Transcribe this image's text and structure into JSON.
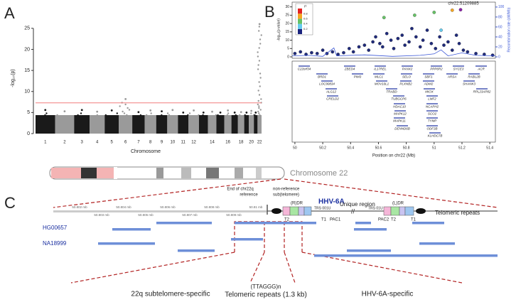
{
  "panel_labels": [
    "A",
    "B",
    "C"
  ],
  "chart_data": [
    {
      "type": "manhattan",
      "ylabel": "-log₁₀(p)",
      "xlabel": "Chromosome",
      "categories": [
        "1",
        "2",
        "3",
        "4",
        "5",
        "6",
        "7",
        "8",
        "9",
        "10",
        "11",
        "12",
        null,
        "14",
        null,
        "16",
        null,
        "18",
        null,
        "20",
        null,
        "22"
      ],
      "values": [
        5.6,
        5.3,
        5.6,
        5.2,
        5.5,
        8.2,
        5.1,
        5.5,
        5.3,
        5.6,
        5.0,
        5.5,
        5.0,
        5.2,
        5.0,
        5.5,
        5.0,
        5.1,
        5.0,
        5.4,
        5.0,
        26
      ],
      "colors": [
        "#1a1a1a",
        "#9a9a9a"
      ],
      "threshold": 7.3,
      "threshold_color": "#f27f7f",
      "ylim": [
        0,
        27
      ],
      "yticks": [
        0,
        5,
        10,
        15,
        20,
        25
      ]
    },
    {
      "type": "scatter",
      "ylabel": "-log₁₀(p-value)",
      "y2label": "Recombination rate (cM/Mb)",
      "xlabel": "Position on chr22 (Mb)",
      "annotation": "chr22:51209885",
      "xlim": [
        49.98,
        51.44
      ],
      "xticks": [
        50,
        50.2,
        50.4,
        50.6,
        50.8,
        51,
        51.2,
        51.4
      ],
      "ylim": [
        0,
        32
      ],
      "yticks": [
        0,
        5,
        10,
        15,
        20,
        25,
        30
      ],
      "y2lim": [
        0,
        107
      ],
      "y2ticks": [
        0,
        20,
        40,
        60,
        80,
        100
      ],
      "legend_title": "r²",
      "legend_ticks": [
        0.2,
        0.4,
        0.6,
        0.8
      ],
      "legend_colors": [
        "#1a237e",
        "#66ccee",
        "#66c266",
        "#f5a623",
        "#e32222"
      ],
      "series": [
        {
          "color": "#1f2a7a",
          "x": [
            50.0,
            50.04,
            50.08,
            50.12,
            50.16,
            50.2,
            50.23,
            50.27,
            50.31,
            50.35,
            50.39,
            50.42,
            50.46,
            50.5,
            50.53,
            50.56,
            50.58,
            50.61,
            50.63,
            50.66,
            50.69,
            50.71,
            50.74,
            50.77,
            50.79,
            50.82,
            50.84,
            50.87,
            50.9,
            50.92,
            50.95,
            50.98,
            51.01,
            51.04,
            51.07,
            51.1,
            51.13,
            51.16,
            51.18,
            51.21,
            51.24,
            51.3,
            51.36,
            51.42
          ],
          "values": [
            2,
            3,
            1.5,
            2.5,
            2,
            4,
            2,
            3,
            1.5,
            2.5,
            5,
            3,
            6,
            7,
            4,
            9,
            12,
            8,
            6,
            14,
            10,
            5,
            11,
            13,
            7,
            9,
            17,
            12,
            6,
            10,
            16,
            8,
            5,
            12,
            7,
            9,
            4,
            13,
            8,
            4,
            3,
            2,
            1.5,
            1
          ]
        },
        {
          "colors": [
            "#66c266",
            "#66c266",
            "#66c266",
            "#66ccee",
            "#f5a623",
            "#8b1fa9"
          ],
          "x": [
            50.64,
            50.86,
            51.0,
            51.05,
            51.13,
            51.19
          ],
          "values": [
            23.6,
            25,
            26.7,
            16,
            28,
            28.3
          ]
        },
        {
          "axis": "y2",
          "color": "#3b57d6",
          "x": [
            49.98,
            50.1,
            50.2,
            50.28,
            50.3,
            50.5,
            50.7,
            50.9,
            51.0,
            51.05,
            51.1,
            51.2,
            51.3,
            51.44
          ],
          "values": [
            2,
            3,
            1,
            18,
            2,
            4,
            1,
            3,
            6,
            14,
            2,
            8,
            3,
            2
          ]
        }
      ],
      "genes": [
        "C22orf34",
        "ZBED4",
        "IL17REL",
        "PANX2",
        "PPP6R2",
        "SYCE3",
        "ACR",
        "BRD1",
        "PIM3",
        "MLC1",
        "SELO",
        "SBF1",
        "ARSA",
        "RABL2B",
        "LOC90834",
        "MOV10L1",
        "PLXNB2",
        "ADM2",
        "SHANK3",
        "ALG12",
        "TRABD",
        "MIOX",
        "RPL23AP82",
        "CRELD2",
        "TUBGCP6",
        "LMF2",
        "HDAC10",
        "NCAPH2",
        "MAPK12",
        "SCO2",
        "MAPK11",
        "TYMP",
        "DENND6B",
        "ODF3B",
        "KLHDC7B"
      ]
    }
  ],
  "diagram": {
    "chromosome_label": "Chromosome 22",
    "end_label": [
      "End of chr22q",
      "reference"
    ],
    "nonref_label": [
      "non-reference",
      "sub(telomere)"
    ],
    "virus_label": "HHV-6A",
    "unique_label": "Unique region",
    "telomeric_label": "Telomeric repeats",
    "ruler_ticks": [
      "50.802 mb",
      "50.803 mb",
      "50.804 mb",
      "50.805 mb",
      "50.806 mb",
      "50.807 mb",
      "50.808 mb",
      "50.809 mb",
      "50.81 mb"
    ],
    "rdr_label": "(R)DR",
    "ldr_label": "(L)DR",
    "trs_left": "TRS 001U",
    "trs_right": "TRS 01U",
    "element_labels_left": [
      "T2",
      "T1",
      "PAC1"
    ],
    "element_labels_right": [
      "PAC2",
      "T2",
      "T1"
    ],
    "samples": [
      "HG00657",
      "NA18999"
    ],
    "bottom_labels": {
      "left": "22q subtelomere-specific",
      "repeat_unit": "(TTAGGG)n",
      "middle": "Telomeric repeats (1.3 kb)",
      "right": "HHV-6A-specific"
    }
  }
}
